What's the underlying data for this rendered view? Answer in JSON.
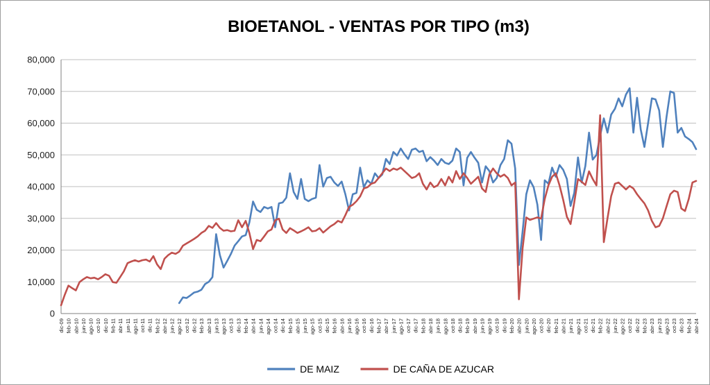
{
  "chart_data": {
    "type": "line",
    "title": "BIOETANOL - VENTAS POR TIPO (m3)",
    "x_frequency": "monthly",
    "x_range_start": "dic-09",
    "x_range_end": "abr-24",
    "x_tick_every": 2,
    "x_tick_labels": [
      "dic-09",
      "feb-10",
      "abr-10",
      "jun-10",
      "ago-10",
      "oct-10",
      "dic-10",
      "feb-11",
      "abr-11",
      "jun-11",
      "ago-11",
      "oct-11",
      "dic-11",
      "feb-12",
      "abr-12",
      "jun-12",
      "ago-12",
      "oct-12",
      "dic-12",
      "feb-13",
      "abr-13",
      "jun-13",
      "ago-13",
      "oct-13",
      "dic-13",
      "feb-14",
      "abr-14",
      "jun-14",
      "ago-14",
      "oct-14",
      "dic-14",
      "feb-15",
      "abr-15",
      "jun-15",
      "ago-15",
      "oct-15",
      "dic-15",
      "feb-16",
      "abr-16",
      "jun-16",
      "ago-16",
      "oct-16",
      "dic-16",
      "feb-17",
      "abr-17",
      "jun-17",
      "ago-17",
      "oct-17",
      "dic-17",
      "feb-18",
      "abr-18",
      "jun-18",
      "ago-18",
      "oct-18",
      "dic-18",
      "feb-19",
      "abr-19",
      "jun-19",
      "ago-19",
      "oct-19",
      "dic-19",
      "feb-20",
      "abr-20",
      "jun-20",
      "ago-20",
      "oct-20",
      "dic-20",
      "feb-21",
      "abr-21",
      "jun-21",
      "ago-21",
      "oct-21",
      "dic-21",
      "feb-22",
      "abr-22",
      "jun-22",
      "ago-22",
      "oct-22",
      "dic-22",
      "feb-23",
      "abr-23",
      "jun-23",
      "ago-23",
      "oct-23",
      "dic-23",
      "feb-24",
      "abr-24"
    ],
    "y_tick_labels": [
      "0",
      "10,000",
      "20,000",
      "30,000",
      "40,000",
      "50,000",
      "60,000",
      "70,000",
      "80,000"
    ],
    "ylim": [
      0,
      80000
    ],
    "y_step": 10000,
    "grid": "horizontal",
    "legend_position": "bottom",
    "series": [
      {
        "name": "DE MAIZ",
        "color": "#4F81BD",
        "values": [
          null,
          null,
          null,
          null,
          null,
          null,
          null,
          null,
          null,
          null,
          null,
          null,
          null,
          null,
          null,
          null,
          null,
          null,
          null,
          null,
          null,
          null,
          null,
          null,
          null,
          null,
          null,
          null,
          null,
          null,
          null,
          null,
          3300,
          5100,
          4900,
          5700,
          6600,
          6900,
          7500,
          9300,
          10000,
          11500,
          25000,
          18400,
          14500,
          16600,
          18800,
          21400,
          22800,
          24300,
          24700,
          28700,
          35300,
          32700,
          32000,
          33600,
          33100,
          33600,
          27200,
          34700,
          35000,
          36500,
          44200,
          38300,
          36100,
          42400,
          36100,
          35400,
          36100,
          36500,
          46800,
          40000,
          42700,
          43100,
          41300,
          40200,
          41600,
          37600,
          32500,
          37600,
          38000,
          46000,
          39800,
          42000,
          40900,
          44200,
          42700,
          43800,
          48700,
          47100,
          50900,
          49800,
          52000,
          50200,
          48700,
          51600,
          52000,
          50900,
          51300,
          48000,
          49300,
          48200,
          46800,
          48700,
          47500,
          47100,
          48200,
          52000,
          50900,
          40400,
          49100,
          50900,
          49100,
          47500,
          41300,
          46400,
          44900,
          41300,
          42700,
          46800,
          48700,
          54600,
          53500,
          45700,
          15300,
          25900,
          37600,
          42000,
          39800,
          34300,
          23200,
          42000,
          40900,
          46000,
          43100,
          46800,
          45300,
          42400,
          33900,
          38000,
          49200,
          41300,
          46500,
          57000,
          48500,
          50000,
          56000,
          61500,
          57000,
          62700,
          64500,
          67800,
          65300,
          69000,
          71000,
          57000,
          68000,
          58000,
          52500,
          60000,
          67800,
          67500,
          64000,
          52500,
          62000,
          70000,
          69500,
          57000,
          58500,
          55800,
          55000,
          54000,
          51800
        ]
      },
      {
        "name": "DE CAÑA DE AZUCAR",
        "color": "#C0504D",
        "values": [
          2600,
          5900,
          8800,
          8000,
          7300,
          9900,
          10800,
          11500,
          11100,
          11300,
          10800,
          11500,
          12400,
          11900,
          9900,
          9700,
          11500,
          13300,
          15900,
          16400,
          16800,
          16400,
          16800,
          17000,
          16400,
          18100,
          15500,
          14000,
          17300,
          18400,
          19200,
          18800,
          19500,
          21400,
          22100,
          22800,
          23500,
          24300,
          25400,
          26100,
          27600,
          27000,
          28500,
          27000,
          26100,
          26300,
          25900,
          26100,
          29400,
          27200,
          29200,
          25400,
          20300,
          23200,
          22800,
          24300,
          25900,
          26500,
          29400,
          29900,
          26500,
          25400,
          26900,
          26200,
          25400,
          25900,
          26500,
          27200,
          25900,
          26100,
          26900,
          25500,
          26500,
          27500,
          28200,
          29200,
          28700,
          31000,
          33600,
          34300,
          35400,
          36900,
          39400,
          39800,
          40900,
          41300,
          42700,
          44200,
          45700,
          44900,
          45700,
          45300,
          46000,
          44900,
          43800,
          42700,
          43100,
          44200,
          40900,
          39100,
          41300,
          39800,
          40400,
          42400,
          40400,
          43100,
          41300,
          44900,
          42400,
          44200,
          42700,
          40900,
          42000,
          43100,
          39400,
          38300,
          43800,
          45700,
          44200,
          43100,
          43800,
          42700,
          40400,
          41300,
          4500,
          20600,
          30300,
          29500,
          29900,
          30300,
          29900,
          36100,
          40400,
          43100,
          44200,
          40400,
          35800,
          30500,
          28200,
          35000,
          42400,
          41500,
          40500,
          44800,
          42400,
          40400,
          62500,
          22500,
          30000,
          37000,
          40900,
          41300,
          40200,
          39100,
          40200,
          39400,
          37600,
          36100,
          34700,
          32500,
          29200,
          27200,
          27600,
          30000,
          33800,
          37600,
          38700,
          38300,
          33100,
          32300,
          36100,
          41300,
          41800
        ]
      }
    ]
  },
  "colors": {
    "grid": "#bfbfbf",
    "axis": "#808080",
    "title": "#000000",
    "tick_text": "#1a1a1a",
    "background": "#ffffff",
    "frame_border": "#9d9d9d"
  }
}
